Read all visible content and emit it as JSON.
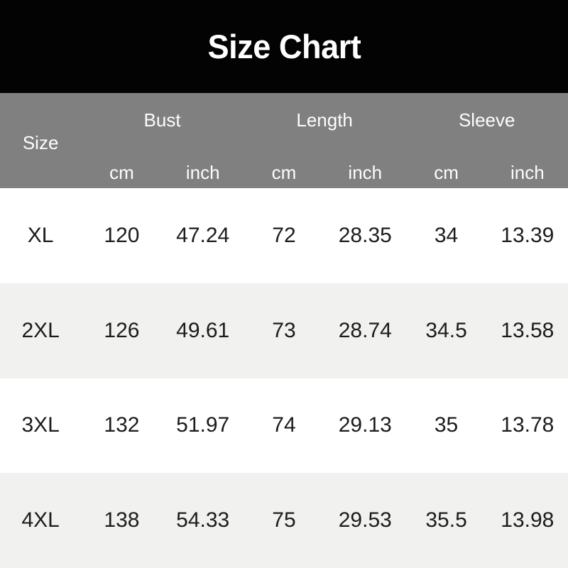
{
  "title": "Size Chart",
  "colors": {
    "banner_bg": "#030303",
    "header_bg": "#808080",
    "header_text": "#fdfdfd",
    "row_bg": "#ffffff",
    "row_alt_bg": "#f1f1ef",
    "cell_text": "#1c1c1c"
  },
  "table": {
    "size_label": "Size",
    "groups": [
      {
        "label": "Bust",
        "units": [
          "cm",
          "inch"
        ]
      },
      {
        "label": "Length",
        "units": [
          "cm",
          "inch"
        ]
      },
      {
        "label": "Sleeve",
        "units": [
          "cm",
          "inch"
        ]
      }
    ],
    "rows": [
      {
        "cells": [
          "XL",
          "120",
          "47.24",
          "72",
          "28.35",
          "34",
          "13.39"
        ]
      },
      {
        "cells": [
          "2XL",
          "126",
          "49.61",
          "73",
          "28.74",
          "34.5",
          "13.58"
        ]
      },
      {
        "cells": [
          "3XL",
          "132",
          "51.97",
          "74",
          "29.13",
          "35",
          "13.78"
        ]
      },
      {
        "cells": [
          "4XL",
          "138",
          "54.33",
          "75",
          "29.53",
          "35.5",
          "13.98"
        ]
      }
    ]
  },
  "chart_data": {
    "type": "table",
    "title": "Size Chart",
    "columns": [
      "Size",
      "Bust cm",
      "Bust inch",
      "Length cm",
      "Length inch",
      "Sleeve cm",
      "Sleeve inch"
    ],
    "rows": [
      [
        "XL",
        120,
        47.24,
        72,
        28.35,
        34,
        13.39
      ],
      [
        "2XL",
        126,
        49.61,
        73,
        28.74,
        34.5,
        13.58
      ],
      [
        "3XL",
        132,
        51.97,
        74,
        29.13,
        35,
        13.78
      ],
      [
        "4XL",
        138,
        54.33,
        75,
        29.53,
        35.5,
        13.98
      ]
    ],
    "layout": {
      "header_groups_span_two_columns": true,
      "alternating_row_shading": true,
      "grid": false
    }
  }
}
